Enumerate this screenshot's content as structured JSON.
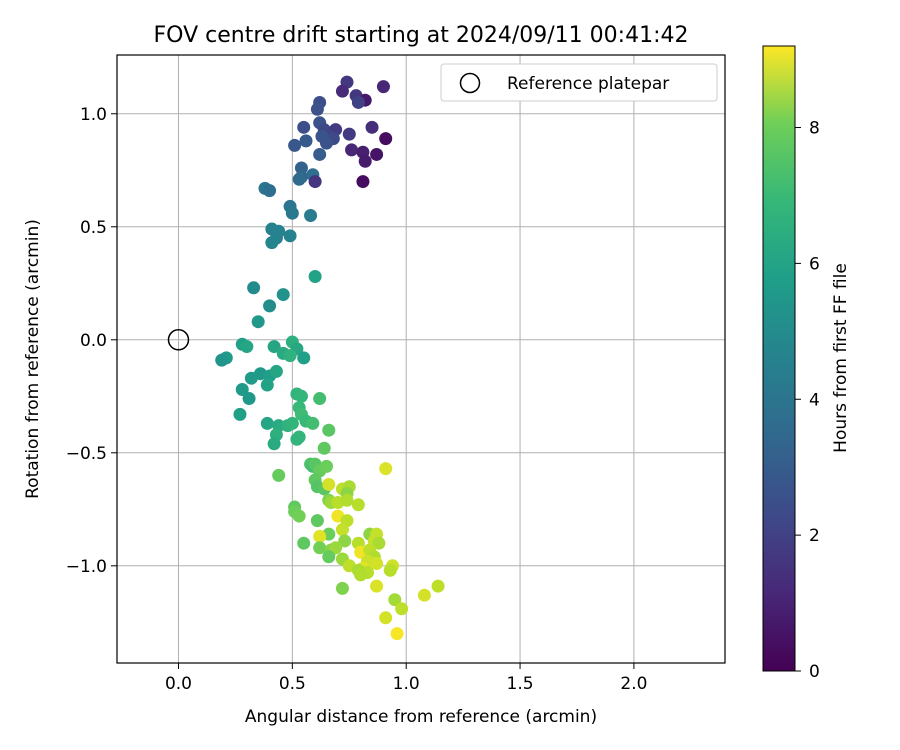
{
  "chart_data": {
    "type": "scatter",
    "title": "FOV centre drift starting at 2024/09/11 00:41:42",
    "xlabel": "Angular distance from reference (arcmin)",
    "ylabel": "Rotation from reference (arcmin)",
    "xlim": [
      -0.27,
      2.4
    ],
    "ylim": [
      -1.43,
      1.26
    ],
    "xticks": [
      0.0,
      0.5,
      1.0,
      1.5,
      2.0
    ],
    "xtick_labels": [
      "0.0",
      "0.5",
      "1.0",
      "1.5",
      "2.0"
    ],
    "yticks": [
      -1.0,
      -0.5,
      0.0,
      0.5,
      1.0
    ],
    "ytick_labels": [
      "−1.0",
      "−0.5",
      "0.0",
      "0.5",
      "1.0"
    ],
    "grid": true,
    "legend": {
      "placement": "top-right",
      "entries": [
        "Reference platepar"
      ]
    },
    "colormap": "viridis",
    "colorbar": {
      "label": "Hours from first FF file",
      "range": [
        0,
        9.2
      ],
      "ticks": [
        0,
        2,
        4,
        6,
        8
      ],
      "tick_labels": [
        "0",
        "2",
        "4",
        "6",
        "8"
      ]
    },
    "reference_point": {
      "x": 0.0,
      "y": 0.0
    },
    "points": [
      {
        "x": 0.9,
        "y": 1.12,
        "c": 1.0
      },
      {
        "x": 0.74,
        "y": 1.14,
        "c": 1.5
      },
      {
        "x": 0.78,
        "y": 1.08,
        "c": 1.5
      },
      {
        "x": 0.82,
        "y": 1.06,
        "c": 0.6
      },
      {
        "x": 0.72,
        "y": 1.1,
        "c": 1.1
      },
      {
        "x": 0.79,
        "y": 1.05,
        "c": 1.8
      },
      {
        "x": 0.62,
        "y": 1.05,
        "c": 2.2
      },
      {
        "x": 0.61,
        "y": 1.02,
        "c": 2.3
      },
      {
        "x": 0.55,
        "y": 0.94,
        "c": 2.2
      },
      {
        "x": 0.62,
        "y": 0.96,
        "c": 2.3
      },
      {
        "x": 0.64,
        "y": 0.93,
        "c": 2.0
      },
      {
        "x": 0.69,
        "y": 0.93,
        "c": 1.6
      },
      {
        "x": 0.75,
        "y": 0.91,
        "c": 1.6
      },
      {
        "x": 0.85,
        "y": 0.94,
        "c": 1.2
      },
      {
        "x": 0.91,
        "y": 0.89,
        "c": 0.3
      },
      {
        "x": 0.66,
        "y": 0.9,
        "c": 1.9
      },
      {
        "x": 0.68,
        "y": 0.89,
        "c": 2.0
      },
      {
        "x": 0.63,
        "y": 0.9,
        "c": 2.4
      },
      {
        "x": 0.65,
        "y": 0.87,
        "c": 2.3
      },
      {
        "x": 0.56,
        "y": 0.88,
        "c": 2.6
      },
      {
        "x": 0.51,
        "y": 0.86,
        "c": 2.5
      },
      {
        "x": 0.76,
        "y": 0.84,
        "c": 1.0
      },
      {
        "x": 0.81,
        "y": 0.83,
        "c": 0.8
      },
      {
        "x": 0.87,
        "y": 0.82,
        "c": 0.5
      },
      {
        "x": 0.82,
        "y": 0.79,
        "c": 0.7
      },
      {
        "x": 0.62,
        "y": 0.82,
        "c": 2.7
      },
      {
        "x": 0.54,
        "y": 0.76,
        "c": 2.9
      },
      {
        "x": 0.54,
        "y": 0.72,
        "c": 3.0
      },
      {
        "x": 0.53,
        "y": 0.71,
        "c": 3.2
      },
      {
        "x": 0.59,
        "y": 0.73,
        "c": 3.3
      },
      {
        "x": 0.6,
        "y": 0.7,
        "c": 1.4
      },
      {
        "x": 0.81,
        "y": 0.7,
        "c": 0.3
      },
      {
        "x": 0.38,
        "y": 0.67,
        "c": 3.6
      },
      {
        "x": 0.4,
        "y": 0.66,
        "c": 3.3
      },
      {
        "x": 0.49,
        "y": 0.59,
        "c": 3.6
      },
      {
        "x": 0.5,
        "y": 0.56,
        "c": 3.7
      },
      {
        "x": 0.58,
        "y": 0.55,
        "c": 3.8
      },
      {
        "x": 0.41,
        "y": 0.49,
        "c": 4.0
      },
      {
        "x": 0.44,
        "y": 0.48,
        "c": 4.1
      },
      {
        "x": 0.43,
        "y": 0.45,
        "c": 4.1
      },
      {
        "x": 0.49,
        "y": 0.46,
        "c": 4.1
      },
      {
        "x": 0.41,
        "y": 0.43,
        "c": 4.2
      },
      {
        "x": 0.6,
        "y": 0.28,
        "c": 5.3
      },
      {
        "x": 0.33,
        "y": 0.23,
        "c": 4.4
      },
      {
        "x": 0.46,
        "y": 0.2,
        "c": 4.7
      },
      {
        "x": 0.4,
        "y": 0.15,
        "c": 4.5
      },
      {
        "x": 0.35,
        "y": 0.08,
        "c": 4.9
      },
      {
        "x": 0.28,
        "y": -0.02,
        "c": 5.2
      },
      {
        "x": 0.3,
        "y": -0.03,
        "c": 5.4
      },
      {
        "x": 0.42,
        "y": -0.03,
        "c": 5.4
      },
      {
        "x": 0.5,
        "y": -0.01,
        "c": 5.8
      },
      {
        "x": 0.46,
        "y": -0.06,
        "c": 5.6
      },
      {
        "x": 0.52,
        "y": -0.04,
        "c": 5.5
      },
      {
        "x": 0.55,
        "y": -0.08,
        "c": 5.2
      },
      {
        "x": 0.49,
        "y": -0.07,
        "c": 5.9
      },
      {
        "x": 0.21,
        "y": -0.08,
        "c": 5.0
      },
      {
        "x": 0.19,
        "y": -0.09,
        "c": 4.8
      },
      {
        "x": 0.36,
        "y": -0.15,
        "c": 4.9
      },
      {
        "x": 0.4,
        "y": -0.16,
        "c": 5.1
      },
      {
        "x": 0.43,
        "y": -0.14,
        "c": 5.4
      },
      {
        "x": 0.32,
        "y": -0.17,
        "c": 5.0
      },
      {
        "x": 0.28,
        "y": -0.22,
        "c": 5.0
      },
      {
        "x": 0.39,
        "y": -0.2,
        "c": 5.3
      },
      {
        "x": 0.31,
        "y": -0.26,
        "c": 4.9
      },
      {
        "x": 0.52,
        "y": -0.24,
        "c": 6.0
      },
      {
        "x": 0.54,
        "y": -0.25,
        "c": 6.1
      },
      {
        "x": 0.62,
        "y": -0.26,
        "c": 6.4
      },
      {
        "x": 0.53,
        "y": -0.3,
        "c": 6.2
      },
      {
        "x": 0.54,
        "y": -0.33,
        "c": 6.3
      },
      {
        "x": 0.27,
        "y": -0.33,
        "c": 5.2
      },
      {
        "x": 0.39,
        "y": -0.37,
        "c": 5.4
      },
      {
        "x": 0.44,
        "y": -0.38,
        "c": 5.6
      },
      {
        "x": 0.48,
        "y": -0.38,
        "c": 5.9
      },
      {
        "x": 0.5,
        "y": -0.37,
        "c": 6.0
      },
      {
        "x": 0.56,
        "y": -0.36,
        "c": 6.2
      },
      {
        "x": 0.59,
        "y": -0.37,
        "c": 6.4
      },
      {
        "x": 0.66,
        "y": -0.4,
        "c": 6.8
      },
      {
        "x": 0.43,
        "y": -0.42,
        "c": 5.8
      },
      {
        "x": 0.53,
        "y": -0.43,
        "c": 6.1
      },
      {
        "x": 0.52,
        "y": -0.44,
        "c": 6.0
      },
      {
        "x": 0.42,
        "y": -0.46,
        "c": 5.6
      },
      {
        "x": 0.64,
        "y": -0.48,
        "c": 6.9
      },
      {
        "x": 0.58,
        "y": -0.55,
        "c": 6.6
      },
      {
        "x": 0.59,
        "y": -0.56,
        "c": 6.4
      },
      {
        "x": 0.6,
        "y": -0.55,
        "c": 6.8
      },
      {
        "x": 0.62,
        "y": -0.58,
        "c": 7.0
      },
      {
        "x": 0.65,
        "y": -0.56,
        "c": 7.1
      },
      {
        "x": 0.44,
        "y": -0.6,
        "c": 7.0
      },
      {
        "x": 0.6,
        "y": -0.62,
        "c": 6.9
      },
      {
        "x": 0.61,
        "y": -0.65,
        "c": 6.7
      },
      {
        "x": 0.64,
        "y": -0.66,
        "c": 6.8
      },
      {
        "x": 0.66,
        "y": -0.64,
        "c": 8.6
      },
      {
        "x": 0.72,
        "y": -0.66,
        "c": 8.3
      },
      {
        "x": 0.75,
        "y": -0.65,
        "c": 8.0
      },
      {
        "x": 0.74,
        "y": -0.68,
        "c": 7.6
      },
      {
        "x": 0.91,
        "y": -0.57,
        "c": 8.7
      },
      {
        "x": 0.66,
        "y": -0.71,
        "c": 7.4
      },
      {
        "x": 0.67,
        "y": -0.72,
        "c": 7.8
      },
      {
        "x": 0.7,
        "y": -0.72,
        "c": 8.2
      },
      {
        "x": 0.74,
        "y": -0.71,
        "c": 8.1
      },
      {
        "x": 0.79,
        "y": -0.73,
        "c": 8.2
      },
      {
        "x": 0.51,
        "y": -0.74,
        "c": 6.9
      },
      {
        "x": 0.51,
        "y": -0.76,
        "c": 7.1
      },
      {
        "x": 0.53,
        "y": -0.78,
        "c": 7.2
      },
      {
        "x": 0.61,
        "y": -0.8,
        "c": 6.9
      },
      {
        "x": 0.7,
        "y": -0.78,
        "c": 9.0
      },
      {
        "x": 0.74,
        "y": -0.8,
        "c": 8.3
      },
      {
        "x": 0.72,
        "y": -0.84,
        "c": 8.4
      },
      {
        "x": 0.66,
        "y": -0.86,
        "c": 7.1
      },
      {
        "x": 0.62,
        "y": -0.87,
        "c": 8.8
      },
      {
        "x": 0.84,
        "y": -0.86,
        "c": 7.6
      },
      {
        "x": 0.87,
        "y": -0.86,
        "c": 8.4
      },
      {
        "x": 0.55,
        "y": -0.9,
        "c": 6.9
      },
      {
        "x": 0.73,
        "y": -0.89,
        "c": 7.6
      },
      {
        "x": 0.79,
        "y": -0.9,
        "c": 8.2
      },
      {
        "x": 0.86,
        "y": -0.89,
        "c": 8.4
      },
      {
        "x": 0.88,
        "y": -0.9,
        "c": 8.0
      },
      {
        "x": 0.62,
        "y": -0.92,
        "c": 7.2
      },
      {
        "x": 0.67,
        "y": -0.93,
        "c": 7.5
      },
      {
        "x": 0.69,
        "y": -0.92,
        "c": 7.8
      },
      {
        "x": 0.8,
        "y": -0.94,
        "c": 9.0
      },
      {
        "x": 0.84,
        "y": -0.93,
        "c": 8.3
      },
      {
        "x": 0.86,
        "y": -0.96,
        "c": 8.1
      },
      {
        "x": 0.66,
        "y": -0.96,
        "c": 7.0
      },
      {
        "x": 0.72,
        "y": -0.97,
        "c": 7.8
      },
      {
        "x": 0.83,
        "y": -0.98,
        "c": 8.5
      },
      {
        "x": 0.87,
        "y": -0.99,
        "c": 8.6
      },
      {
        "x": 0.75,
        "y": -1.0,
        "c": 8.3
      },
      {
        "x": 0.81,
        "y": -1.01,
        "c": 8.8
      },
      {
        "x": 0.83,
        "y": -1.03,
        "c": 8.2
      },
      {
        "x": 0.79,
        "y": -1.02,
        "c": 8.0
      },
      {
        "x": 0.8,
        "y": -1.04,
        "c": 8.1
      },
      {
        "x": 0.94,
        "y": -1.0,
        "c": 8.5
      },
      {
        "x": 0.93,
        "y": -1.02,
        "c": 8.2
      },
      {
        "x": 0.87,
        "y": -1.09,
        "c": 8.7
      },
      {
        "x": 0.72,
        "y": -1.1,
        "c": 7.4
      },
      {
        "x": 0.95,
        "y": -1.15,
        "c": 7.9
      },
      {
        "x": 0.98,
        "y": -1.19,
        "c": 8.3
      },
      {
        "x": 1.08,
        "y": -1.13,
        "c": 8.6
      },
      {
        "x": 1.14,
        "y": -1.09,
        "c": 8.3
      },
      {
        "x": 0.91,
        "y": -1.23,
        "c": 8.6
      },
      {
        "x": 0.96,
        "y": -1.3,
        "c": 9.1
      }
    ]
  }
}
